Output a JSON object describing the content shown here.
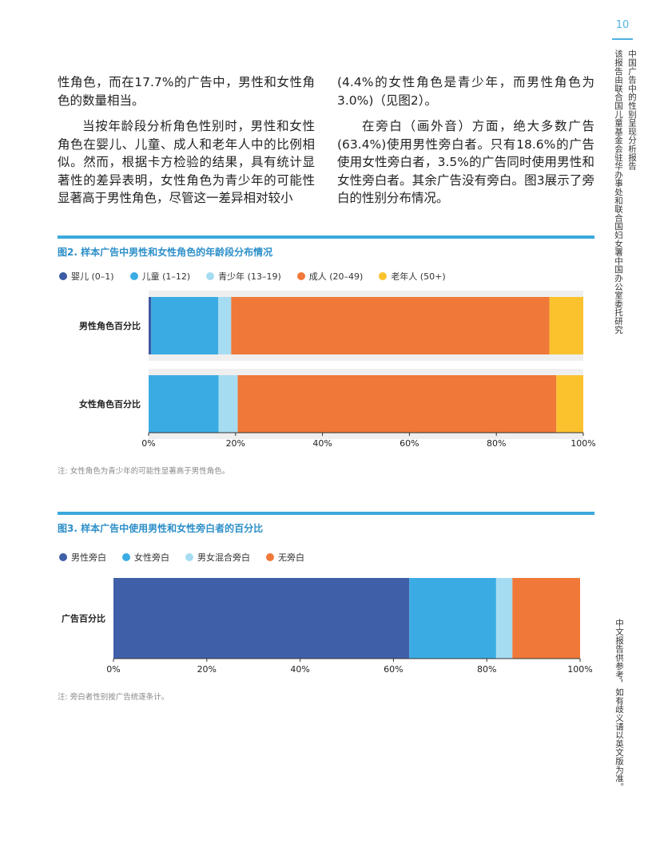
{
  "page_number": "10",
  "side_title_1": "中国广告中的性别呈现分析报告",
  "side_title_2": "该报告由联合国儿童基金会驻华办事处和联合国妇女署中国办公室委托研究",
  "side_note": "中文报告供参考，如有歧义请以英文版为准。",
  "body": {
    "left_p1": "性角色，而在17.7%的广告中，男性和女性角色的数量相当。",
    "left_p2": "当按年龄段分析角色性别时，男性和女性角色在婴儿、儿童、成人和老年人中的比例相似。然而，根据卡方检验的结果，具有统计显著性的差异表明，女性角色为青少年的可能性显著高于男性角色，尽管这一差异相对较小",
    "right_p1": "(4.4%的女性角色是青少年，而男性角色为3.0%)（见图2）。",
    "right_p2": "在旁白（画外音）方面，绝大多数广告(63.4%)使用男性旁白者。只有18.6%的广告使用女性旁白者，3.5%的广告同时使用男性和女性旁白者。其余广告没有旁白。图3展示了旁白的性别分布情况。"
  },
  "figure2": {
    "title": "图2. 样本广告中男性和女性角色的年龄段分布情况",
    "note": "注: 女性角色为青少年的可能性显著高于男性角色。",
    "legend": [
      {
        "label": "婴儿 (0–1)",
        "color": "#3b5ba5"
      },
      {
        "label": "儿童 (1–12)",
        "color": "#3aace3"
      },
      {
        "label": "青少年 (13–19)",
        "color": "#a6dcf2"
      },
      {
        "label": "成人 (20–49)",
        "color": "#f07838"
      },
      {
        "label": "老年人 (50+)",
        "color": "#fbc22e"
      }
    ]
  },
  "figure3": {
    "title": "图3. 样本广告中使用男性和女性旁白者的百分比",
    "note": "注: 旁白者性别按广告统逐条计。",
    "legend": [
      {
        "label": "男性旁白",
        "color": "#3f5fa8"
      },
      {
        "label": "女性旁白",
        "color": "#3aace3"
      },
      {
        "label": "男女混合旁白",
        "color": "#a6dcf2"
      },
      {
        "label": "无旁白",
        "color": "#f07838"
      }
    ]
  },
  "chart_data": [
    {
      "type": "bar",
      "orientation": "horizontal",
      "stacked": true,
      "title": "图2. 样本广告中男性和女性角色的年龄段分布情况",
      "categories": [
        "男性角色百分比",
        "女性角色百分比"
      ],
      "series": [
        {
          "name": "婴儿 (0–1)",
          "values": [
            0.6,
            0.0
          ]
        },
        {
          "name": "儿童 (1–12)",
          "values": [
            15.4,
            16.1
          ]
        },
        {
          "name": "青少年 (13–19)",
          "values": [
            3.0,
            4.4
          ]
        },
        {
          "name": "成人 (20–49)",
          "values": [
            73.2,
            73.3
          ]
        },
        {
          "name": "老年人 (50+)",
          "values": [
            7.8,
            6.2
          ]
        }
      ],
      "xlim": [
        0,
        100
      ],
      "xticks": [
        "0%",
        "20%",
        "40%",
        "60%",
        "80%",
        "100%"
      ],
      "legend_position": "top"
    },
    {
      "type": "bar",
      "orientation": "horizontal",
      "stacked": true,
      "title": "图3. 样本广告中使用男性和女性旁白者的百分比",
      "categories": [
        "广告百分比"
      ],
      "series": [
        {
          "name": "男性旁白",
          "values": [
            63.4
          ]
        },
        {
          "name": "女性旁白",
          "values": [
            18.6
          ]
        },
        {
          "name": "男女混合旁白",
          "values": [
            3.5
          ]
        },
        {
          "name": "无旁白",
          "values": [
            14.5
          ]
        }
      ],
      "xlim": [
        0,
        100
      ],
      "xticks": [
        "0%",
        "20%",
        "40%",
        "60%",
        "80%",
        "100%"
      ],
      "legend_position": "top"
    }
  ]
}
